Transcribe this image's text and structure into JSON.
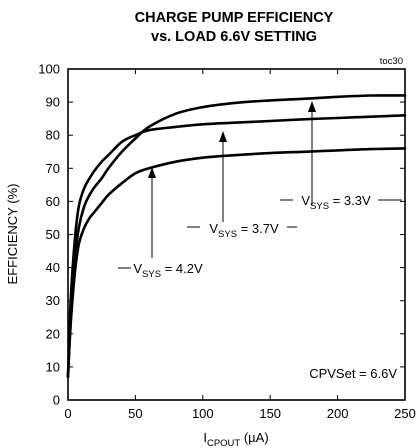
{
  "chart_data": {
    "type": "line",
    "title_line1": "CHARGE PUMP EFFICIENCY",
    "title_line2": "vs. LOAD 6.6V SETTING",
    "figure_id": "toc30",
    "xlabel_main": "I",
    "xlabel_sub": "CPOUT",
    "xlabel_unit": " (µA)",
    "ylabel": "EFFICIENCY (%)",
    "xlim": [
      0,
      250
    ],
    "ylim": [
      0,
      100
    ],
    "xticks": [
      0,
      50,
      100,
      150,
      200,
      250
    ],
    "yticks": [
      0,
      10,
      20,
      30,
      40,
      50,
      60,
      70,
      80,
      90,
      100
    ],
    "grid": false,
    "condition_label": "CPVSet = 6.6V",
    "series": [
      {
        "label_main": "V",
        "label_sub": "SYS",
        "label_value": " = 3.3V",
        "x": [
          0,
          2,
          5,
          8,
          12,
          16,
          20,
          25,
          30,
          40,
          50,
          60,
          80,
          100,
          125,
          150,
          175,
          200,
          225,
          250
        ],
        "y": [
          7,
          25,
          42,
          52,
          58.5,
          62,
          64.5,
          67,
          70,
          75,
          79,
          82.5,
          86.5,
          88.5,
          89.8,
          90.5,
          91,
          91.6,
          92,
          92
        ]
      },
      {
        "label_main": "V",
        "label_sub": "SYS",
        "label_value": " = 3.7V",
        "x": [
          0,
          2,
          5,
          8,
          12,
          16,
          20,
          25,
          30,
          40,
          50,
          60,
          80,
          100,
          125,
          150,
          175,
          200,
          225,
          250
        ],
        "y": [
          7,
          30,
          48,
          58.5,
          64,
          67,
          69.5,
          72,
          74,
          78,
          80,
          81.5,
          82.5,
          83.3,
          83.8,
          84.3,
          84.8,
          85.2,
          85.6,
          86
        ]
      },
      {
        "label_main": "V",
        "label_sub": "SYS",
        "label_value": " = 4.2V",
        "x": [
          0,
          2,
          5,
          8,
          12,
          16,
          20,
          25,
          30,
          40,
          50,
          60,
          80,
          100,
          125,
          150,
          175,
          200,
          225,
          250
        ],
        "y": [
          7,
          23,
          38,
          47,
          52,
          55,
          57,
          59.5,
          62,
          65.5,
          68.5,
          70,
          72,
          73.2,
          74,
          74.6,
          75,
          75.4,
          75.8,
          76
        ]
      }
    ]
  }
}
